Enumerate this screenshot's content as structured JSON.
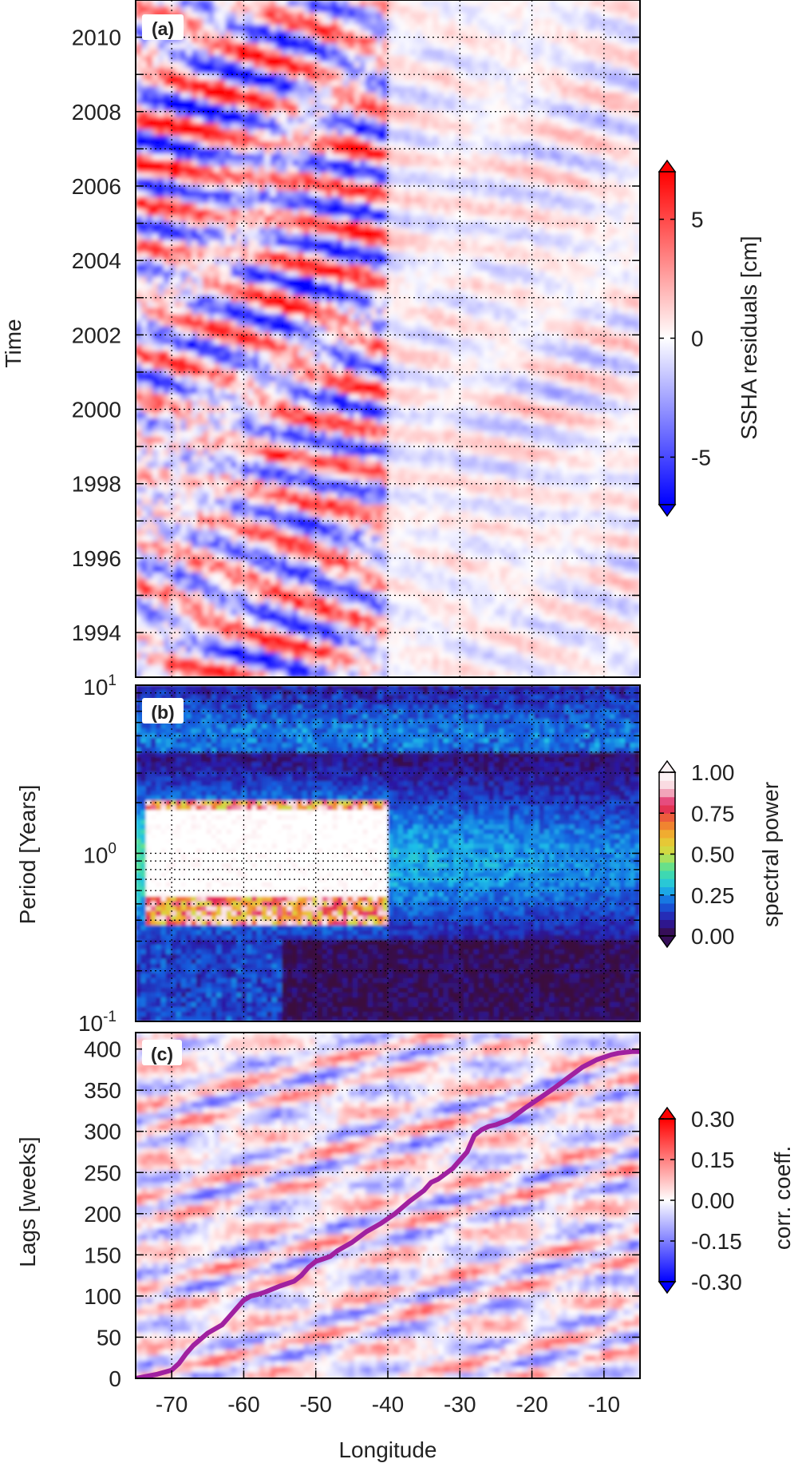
{
  "chart_data": [
    {
      "type": "heatmap",
      "panel_label": "(a)",
      "xlabel": "",
      "ylabel": "Time",
      "xlim": [
        -75,
        -5
      ],
      "ylim": [
        1992.8,
        2011
      ],
      "y_ticks": [
        1994,
        1996,
        1998,
        2000,
        2002,
        2004,
        2006,
        2008,
        2010
      ],
      "grid": true,
      "colorbar": {
        "label": "SSHA residuals [cm]",
        "range": [
          -7,
          7
        ],
        "ticks": [
          {
            "value": 5,
            "label": "5"
          },
          {
            "value": 0,
            "label": "0"
          },
          {
            "value": -5,
            "label": "-5"
          }
        ],
        "colormap": [
          "#0000ff",
          "#ffffff",
          "#ff0000"
        ]
      },
      "pattern": "westward-propagating bands; strong amplitude (about ±7 cm) west of -40, weak amplitude (about ±2 cm) east of -40"
    },
    {
      "type": "heatmap",
      "panel_label": "(b)",
      "xlabel": "",
      "ylabel": "Period [Years]",
      "xlim": [
        -75,
        -5
      ],
      "ylim": [
        0.1,
        10
      ],
      "y_scale": "log",
      "y_ticks": [
        {
          "value": 10,
          "base": "10",
          "exp": "1"
        },
        {
          "value": 1,
          "base": "10",
          "exp": "0"
        },
        {
          "value": 0.1,
          "base": "10",
          "exp": "-1"
        }
      ],
      "grid": true,
      "colorbar": {
        "label": "spectral power",
        "range": [
          0,
          1
        ],
        "ticks": [
          {
            "value": 1.0,
            "label": "1.00"
          },
          {
            "value": 0.75,
            "label": "0.75"
          },
          {
            "value": 0.5,
            "label": "0.50"
          },
          {
            "value": 0.25,
            "label": "0.25"
          },
          {
            "value": 0.0,
            "label": "0.00"
          }
        ],
        "colormap": [
          "#3a0a3e",
          "#2a1aa8",
          "#1560e0",
          "#1ec0e8",
          "#48e0a0",
          "#c8e048",
          "#f0c030",
          "#f07030",
          "#e02060",
          "#f8d0d8",
          "#ffffff"
        ]
      },
      "pattern": "saturated power (>=1.0) at periods about 0.4-2 years for longitudes -73 to -40; moderate power 0.3-0.6 east of -40; near zero power below 0.3 years east of -55"
    },
    {
      "type": "heatmap",
      "panel_label": "(c)",
      "xlabel": "Longitude",
      "ylabel": "Lags [weeks]",
      "xlim": [
        -75,
        -5
      ],
      "ylim": [
        0,
        420
      ],
      "x_ticks": [
        -70,
        -60,
        -50,
        -40,
        -30,
        -20,
        -10
      ],
      "y_ticks": [
        0,
        50,
        100,
        150,
        200,
        250,
        300,
        350,
        400
      ],
      "grid": true,
      "colorbar": {
        "label": "corr. coeff.",
        "range": [
          -0.3,
          0.3
        ],
        "ticks": [
          {
            "value": 0.3,
            "label": "0.30"
          },
          {
            "value": 0.15,
            "label": "0.15"
          },
          {
            "value": 0.0,
            "label": "0.00"
          },
          {
            "value": -0.15,
            "label": "-0.15"
          },
          {
            "value": -0.3,
            "label": "-0.30"
          }
        ],
        "colormap": [
          "#0000ff",
          "#ffffff",
          "#ff0000"
        ]
      },
      "curve": {
        "color": "#a020a0",
        "x": [
          -75,
          -72,
          -70,
          -69,
          -68,
          -67,
          -65,
          -63,
          -62,
          -61,
          -60,
          -59,
          -58,
          -57,
          -55,
          -53,
          -52,
          -51,
          -50,
          -49,
          -48,
          -47,
          -45,
          -43,
          -41,
          -39,
          -37,
          -35,
          -34,
          -33,
          -31,
          -29,
          -28,
          -27,
          -26,
          -25,
          -23,
          -21,
          -19,
          -17,
          -15,
          -13,
          -11,
          -9,
          -8,
          -7,
          -6,
          -5
        ],
        "y": [
          0,
          5,
          10,
          18,
          30,
          40,
          55,
          65,
          75,
          85,
          95,
          100,
          102,
          105,
          112,
          118,
          125,
          135,
          142,
          145,
          148,
          155,
          165,
          178,
          188,
          200,
          215,
          228,
          238,
          242,
          255,
          275,
          295,
          302,
          306,
          308,
          315,
          328,
          340,
          352,
          365,
          378,
          387,
          393,
          395,
          396,
          397,
          397
        ]
      }
    }
  ]
}
